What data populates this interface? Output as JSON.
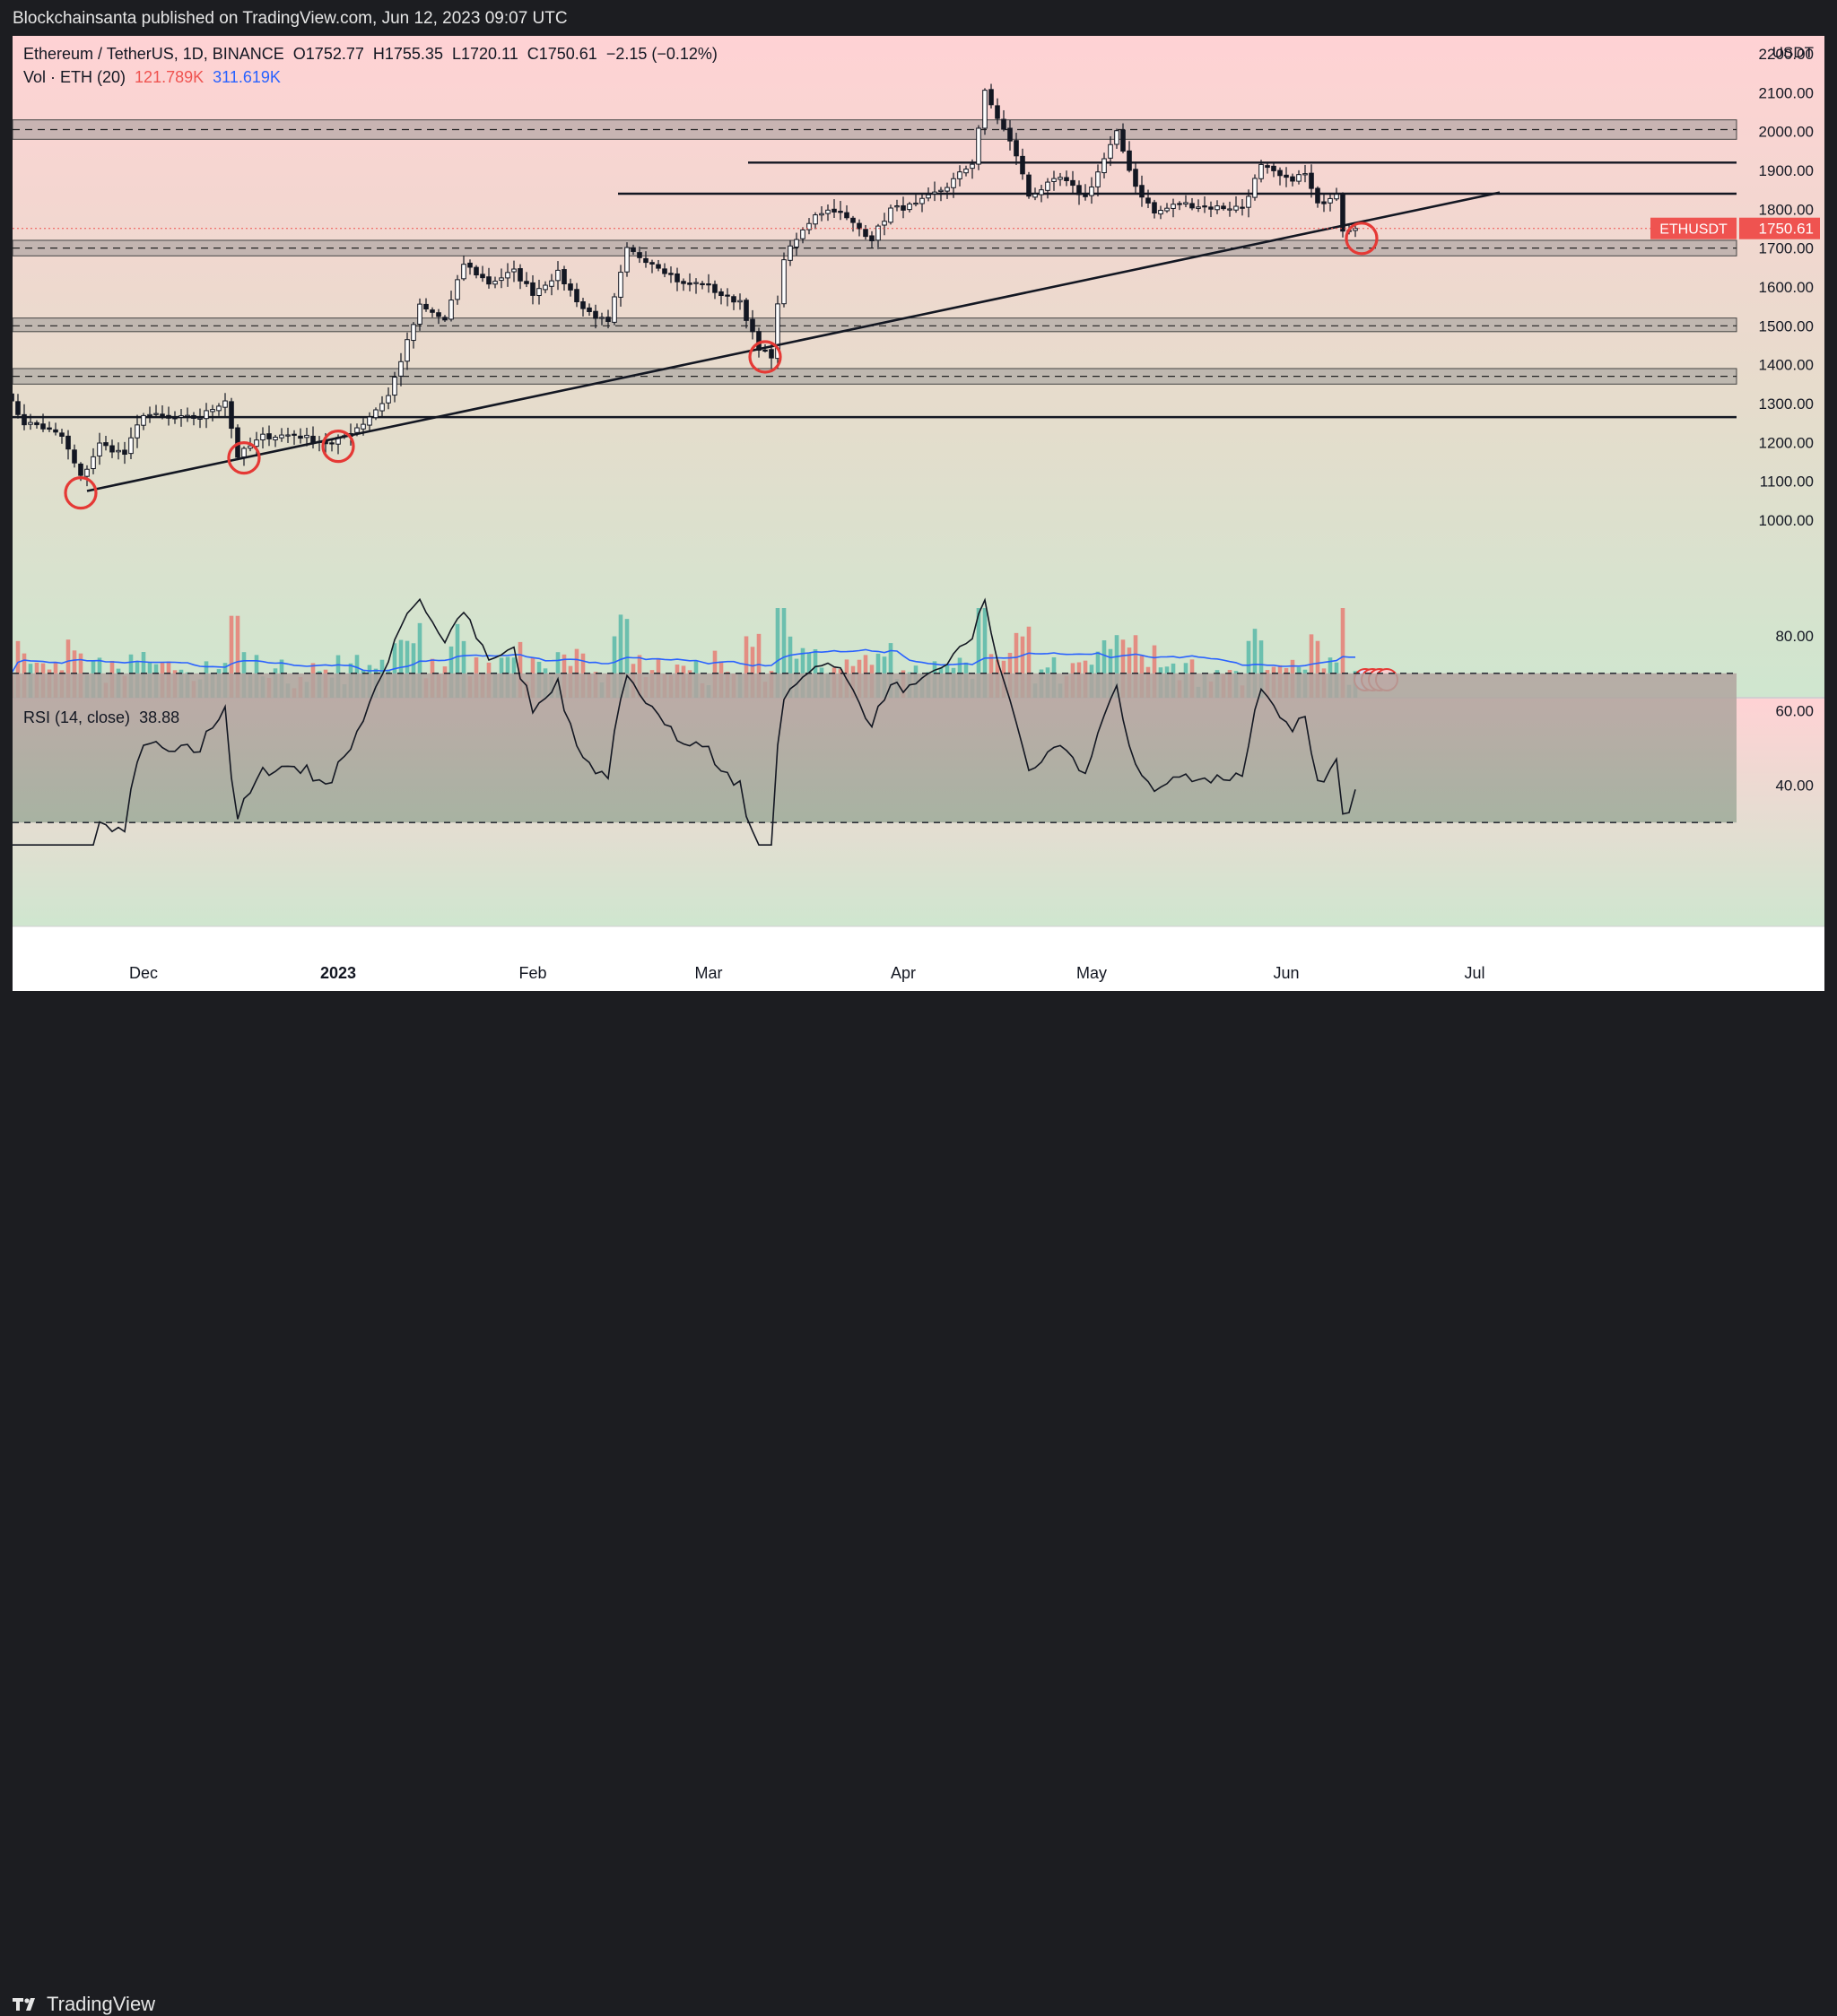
{
  "header": {
    "publisher_line": "Blockchainsanta published on TradingView.com, Jun 12, 2023 09:07 UTC"
  },
  "legend": {
    "symbol": "Ethereum / TetherUS, 1D, BINANCE",
    "open": "O1752.77",
    "high": "H1755.35",
    "low": "L1720.11",
    "close": "C1750.61",
    "change": "−2.15 (−0.12%)",
    "vol_label": "Vol · ETH (20)",
    "vol_value": "121.789K",
    "vol_ma": "311.619K",
    "rsi_label": "RSI (14, close)",
    "rsi_value": "38.88"
  },
  "footer": {
    "logo_text": "TradingView"
  },
  "colors": {
    "up": "#26a69a",
    "down": "#ef5350",
    "price_tag": "#ef5350",
    "circle": "#e53935",
    "vol_ma": "#2962ff"
  },
  "chart_data": [
    {
      "type": "candlestick",
      "title": "Ethereum / TetherUS, 1D, BINANCE",
      "y_unit": "USDT",
      "ylim": [
        970,
        2250
      ],
      "y_ticks": [
        1000,
        1100,
        1200,
        1300,
        1400,
        1500,
        1600,
        1700,
        1800,
        1900,
        2000,
        2100,
        2200
      ],
      "y_tick_labels": [
        "1000.00",
        "1100.00",
        "1200.00",
        "1300.00",
        "1400.00",
        "1500.00",
        "1600.00",
        "1700.00",
        "1800.00",
        "1900.00",
        "2000.00",
        "2100.00",
        "2200.00"
      ],
      "x_labels": [
        "Dec",
        "2023",
        "Feb",
        "Mar",
        "Apr",
        "May",
        "Jun",
        "Jul"
      ],
      "x_label_dates": [
        "2022-12-01",
        "2023-01-01",
        "2023-02-01",
        "2023-03-01",
        "2023-04-01",
        "2023-05-01",
        "2023-06-01",
        "2023-07-01"
      ],
      "last_price": {
        "label": "ETHUSDT",
        "value": "1750.61"
      },
      "background": "top red, bottom green gradient",
      "close_anchors": [
        [
          "2022-11-09",
          1330
        ],
        [
          "2022-11-10",
          1300
        ],
        [
          "2022-11-12",
          1250
        ],
        [
          "2022-11-14",
          1245
        ],
        [
          "2022-11-18",
          1215
        ],
        [
          "2022-11-21",
          1110
        ],
        [
          "2022-11-22",
          1135
        ],
        [
          "2022-11-24",
          1195
        ],
        [
          "2022-11-28",
          1170
        ],
        [
          "2022-12-01",
          1275
        ],
        [
          "2022-12-05",
          1260
        ],
        [
          "2022-12-10",
          1265
        ],
        [
          "2022-12-14",
          1310
        ],
        [
          "2022-12-16",
          1165
        ],
        [
          "2022-12-20",
          1215
        ],
        [
          "2022-12-25",
          1220
        ],
        [
          "2022-12-31",
          1195
        ],
        [
          "2023-01-05",
          1250
        ],
        [
          "2023-01-09",
          1320
        ],
        [
          "2023-01-14",
          1550
        ],
        [
          "2023-01-18",
          1515
        ],
        [
          "2023-01-21",
          1660
        ],
        [
          "2023-01-25",
          1610
        ],
        [
          "2023-01-29",
          1640
        ],
        [
          "2023-02-01",
          1585
        ],
        [
          "2023-02-05",
          1635
        ],
        [
          "2023-02-09",
          1545
        ],
        [
          "2023-02-13",
          1505
        ],
        [
          "2023-02-16",
          1695
        ],
        [
          "2023-02-21",
          1655
        ],
        [
          "2023-02-25",
          1605
        ],
        [
          "2023-02-28",
          1610
        ],
        [
          "2023-03-04",
          1570
        ],
        [
          "2023-03-06",
          1565
        ],
        [
          "2023-03-09",
          1435
        ],
        [
          "2023-03-11",
          1425
        ],
        [
          "2023-03-13",
          1675
        ],
        [
          "2023-03-18",
          1790
        ],
        [
          "2023-03-21",
          1800
        ],
        [
          "2023-03-27",
          1725
        ],
        [
          "2023-03-30",
          1800
        ],
        [
          "2023-04-03",
          1810
        ],
        [
          "2023-04-08",
          1860
        ],
        [
          "2023-04-12",
          1920
        ],
        [
          "2023-04-14",
          2100
        ],
        [
          "2023-04-19",
          1940
        ],
        [
          "2023-04-21",
          1835
        ],
        [
          "2023-04-26",
          1880
        ],
        [
          "2023-04-30",
          1830
        ],
        [
          "2023-05-05",
          1995
        ],
        [
          "2023-05-08",
          1860
        ],
        [
          "2023-05-11",
          1790
        ],
        [
          "2023-05-15",
          1815
        ],
        [
          "2023-05-20",
          1805
        ],
        [
          "2023-05-25",
          1805
        ],
        [
          "2023-05-28",
          1910
        ],
        [
          "2023-06-01",
          1875
        ],
        [
          "2023-06-04",
          1890
        ],
        [
          "2023-06-06",
          1810
        ],
        [
          "2023-06-09",
          1845
        ],
        [
          "2023-06-10",
          1750
        ],
        [
          "2023-06-11",
          1752
        ],
        [
          "2023-06-12",
          1750.61
        ]
      ],
      "horizontal_levels": [
        1265,
        1840,
        1920
      ],
      "zones": [
        {
          "top": 2030,
          "mid": 2005,
          "bottom": 1980
        },
        {
          "top": 1720,
          "mid": 1700,
          "bottom": 1680
        },
        {
          "top": 1520,
          "mid": 1500,
          "bottom": 1485
        },
        {
          "top": 1390,
          "mid": 1370,
          "bottom": 1350
        }
      ],
      "trendline": {
        "from": [
          "2022-11-22",
          1075
        ],
        "to": [
          "2023-07-05",
          1843
        ]
      },
      "touch_circles": [
        [
          "2022-11-21",
          1070
        ],
        [
          "2022-12-17",
          1160
        ],
        [
          "2023-01-01",
          1190
        ],
        [
          "2023-03-10",
          1420
        ],
        [
          "2023-06-13",
          1725
        ]
      ]
    },
    {
      "type": "bar",
      "title": "Vol · ETH (20)",
      "series": [
        {
          "name": "Vol · ETH (20)",
          "values": "per-day volume shown as bars beneath price"
        }
      ],
      "latest_volume": "121.789K",
      "moving_average": "311.619K"
    },
    {
      "type": "line",
      "title": "RSI (14, close)",
      "ylim": [
        22,
        92
      ],
      "y_ticks": [
        40,
        60,
        80
      ],
      "y_tick_labels": [
        "40.00",
        "60.00",
        "80.00"
      ],
      "bands": [
        30,
        70
      ],
      "last_value": 38.88
    }
  ]
}
